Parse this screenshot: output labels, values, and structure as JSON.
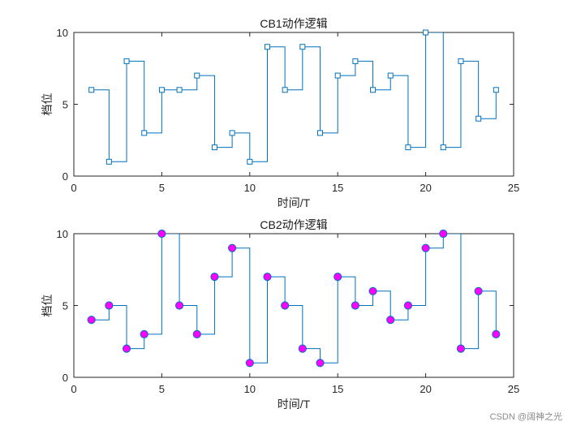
{
  "chart_data": [
    {
      "type": "line",
      "subtype": "stairs",
      "title": "CB1动作逻辑",
      "xlabel": "时间/T",
      "ylabel": "档位",
      "xlim": [
        0,
        25
      ],
      "ylim": [
        0,
        10
      ],
      "xticks": [
        "0",
        "5",
        "10",
        "15",
        "20",
        "25"
      ],
      "yticks": [
        "0",
        "5",
        "10"
      ],
      "series": [
        {
          "name": "CB1",
          "line_color": "#0072BD",
          "marker": "square",
          "marker_face": "none",
          "x": [
            1,
            2,
            3,
            4,
            5,
            6,
            7,
            8,
            9,
            10,
            11,
            12,
            13,
            14,
            15,
            16,
            17,
            18,
            19,
            20,
            21,
            22,
            23,
            24
          ],
          "values": [
            6,
            1,
            8,
            3,
            6,
            6,
            7,
            2,
            3,
            1,
            9,
            6,
            9,
            3,
            7,
            8,
            6,
            7,
            2,
            10,
            2,
            8,
            4,
            6
          ]
        }
      ]
    },
    {
      "type": "line",
      "subtype": "stairs",
      "title": "CB2动作逻辑",
      "xlabel": "时间/T",
      "ylabel": "档位",
      "xlim": [
        0,
        25
      ],
      "ylim": [
        0,
        10
      ],
      "xticks": [
        "0",
        "5",
        "10",
        "15",
        "20",
        "25"
      ],
      "yticks": [
        "0",
        "5",
        "10"
      ],
      "series": [
        {
          "name": "CB2",
          "line_color": "#0072BD",
          "marker": "circle",
          "marker_face": "#FF00FF",
          "x": [
            1,
            2,
            3,
            4,
            5,
            6,
            7,
            8,
            9,
            10,
            11,
            12,
            13,
            14,
            15,
            16,
            17,
            18,
            19,
            20,
            21,
            22,
            23,
            24
          ],
          "values": [
            4,
            5,
            2,
            3,
            10,
            5,
            3,
            7,
            9,
            1,
            7,
            5,
            2,
            1,
            7,
            5,
            6,
            4,
            5,
            9,
            10,
            2,
            6,
            3
          ]
        }
      ]
    }
  ],
  "watermark": "CSDN @阔神之光"
}
